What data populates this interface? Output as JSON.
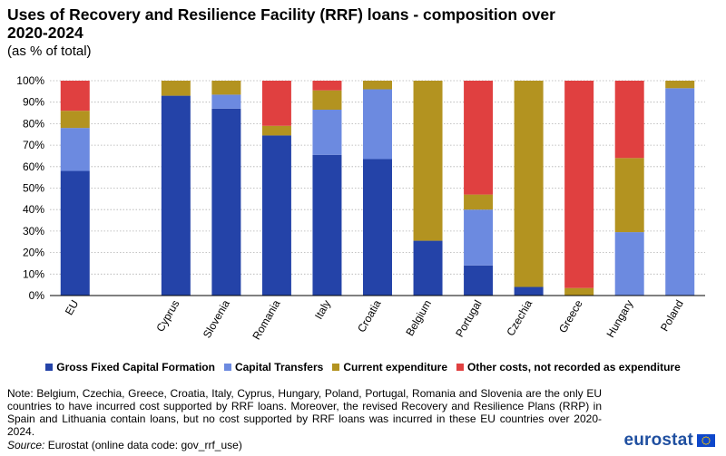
{
  "header": {
    "title": "Uses of Recovery and Resilience Facility (RRF) loans - composition over 2020-2024",
    "subtitle": "(as % of total)"
  },
  "chart_data": {
    "type": "bar",
    "stacked": true,
    "categories": [
      "EU",
      "",
      "Cyprus",
      "Slovenia",
      "Romania",
      "Italy",
      "Croatia",
      "Belgium",
      "Portugal",
      "Czechia",
      "Greece",
      "Hungary",
      "Poland"
    ],
    "series": [
      {
        "name": "Gross Fixed Capital Formation",
        "color": "#2443a8",
        "values": [
          58,
          null,
          93,
          87,
          74.5,
          65.5,
          63.5,
          25.5,
          14,
          4,
          0,
          0,
          0
        ]
      },
      {
        "name": "Capital Transfers",
        "color": "#6c8ae0",
        "values": [
          20,
          null,
          0,
          6.5,
          0,
          21,
          32.5,
          0,
          26,
          0,
          0,
          29.5,
          96.5
        ]
      },
      {
        "name": "Current expenditure",
        "color": "#b39320",
        "values": [
          8,
          null,
          7,
          6.5,
          4.5,
          9,
          4,
          74.5,
          7,
          96,
          3.5,
          34.5,
          3.5
        ]
      },
      {
        "name": "Other costs, not recorded as expenditure",
        "color": "#e04040",
        "values": [
          14,
          null,
          0,
          0,
          21,
          4.5,
          0,
          0,
          53,
          0,
          96.5,
          36,
          0
        ]
      }
    ],
    "y_ticks": [
      "0%",
      "10%",
      "20%",
      "30%",
      "40%",
      "50%",
      "60%",
      "70%",
      "80%",
      "90%",
      "100%"
    ],
    "ylim": [
      0,
      100
    ],
    "grid": "horizontal dotted",
    "legend_position": "bottom"
  },
  "legend": {
    "items": [
      {
        "label": "Gross Fixed Capital Formation",
        "color": "#2443a8"
      },
      {
        "label": "Capital Transfers",
        "color": "#6c8ae0"
      },
      {
        "label": "Current expenditure",
        "color": "#b39320"
      },
      {
        "label": "Other costs, not recorded as expenditure",
        "color": "#e04040"
      }
    ]
  },
  "footer": {
    "note": "Note: Belgium, Czechia, Greece, Croatia, Italy, Cyprus, Hungary, Poland, Portugal, Romania and Slovenia are the only EU countries to have incurred cost supported by RRF loans. Moreover, the revised Recovery and Resilience Plans (RRP) in Spain and Lithuania contain loans, but no cost supported by RRF loans was incurred in these EU countries over 2020-2024.",
    "source_label": "Source:",
    "source_text": " Eurostat (online data code: gov_rrf_use)",
    "logo_text": "eurostat"
  }
}
